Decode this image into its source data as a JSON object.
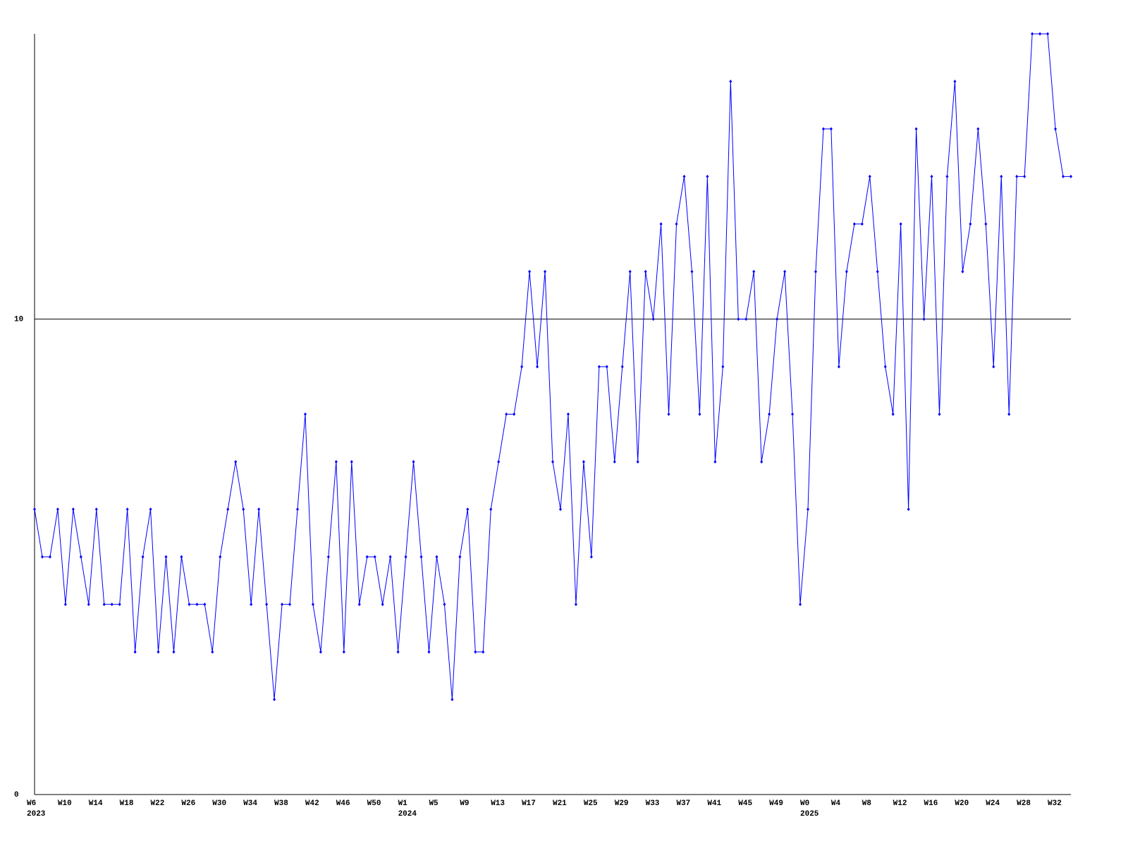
{
  "chart_data": {
    "type": "line",
    "categories": [
      "W6",
      null,
      null,
      null,
      "W10",
      null,
      null,
      null,
      "W14",
      null,
      null,
      null,
      "W18",
      null,
      null,
      null,
      "W22",
      null,
      null,
      null,
      "W26",
      null,
      null,
      null,
      "W30",
      null,
      null,
      null,
      "W34",
      null,
      null,
      null,
      "W38",
      null,
      null,
      null,
      "W42",
      null,
      null,
      null,
      "W46",
      null,
      null,
      null,
      "W50",
      null,
      null,
      null,
      "W1",
      null,
      null,
      null,
      "W5",
      null,
      null,
      null,
      "W9",
      null,
      null,
      null,
      "W13",
      null,
      null,
      null,
      "W17",
      null,
      null,
      null,
      "W21",
      null,
      null,
      null,
      "W25",
      null,
      null,
      null,
      "W29",
      null,
      null,
      null,
      "W33",
      null,
      null,
      null,
      "W37",
      null,
      null,
      null,
      "W41",
      null,
      null,
      null,
      "W45",
      null,
      null,
      null,
      "W49",
      null,
      null,
      null,
      "W0",
      null,
      null,
      null,
      "W4",
      null,
      null,
      null,
      "W8",
      null,
      null,
      null,
      "W12",
      null,
      null,
      null,
      "W16",
      null,
      null,
      null,
      "W20",
      null,
      null,
      null,
      "W24",
      null,
      null,
      null,
      "W28",
      null,
      null,
      null,
      "W32",
      null,
      null
    ],
    "years": [
      "2023",
      null,
      null,
      null,
      null,
      null,
      null,
      null,
      null,
      null,
      null,
      null,
      null,
      null,
      null,
      null,
      null,
      null,
      null,
      null,
      null,
      null,
      null,
      null,
      null,
      null,
      null,
      null,
      null,
      null,
      null,
      null,
      null,
      null,
      null,
      null,
      null,
      null,
      null,
      null,
      null,
      null,
      null,
      null,
      null,
      null,
      null,
      null,
      "2024",
      null,
      null,
      null,
      null,
      null,
      null,
      null,
      null,
      null,
      null,
      null,
      null,
      null,
      null,
      null,
      null,
      null,
      null,
      null,
      null,
      null,
      null,
      null,
      null,
      null,
      null,
      null,
      null,
      null,
      null,
      null,
      null,
      null,
      null,
      null,
      null,
      null,
      null,
      null,
      null,
      null,
      null,
      null,
      null,
      null,
      null,
      null,
      null,
      null,
      null,
      null,
      "2025",
      null,
      null,
      null,
      null,
      null,
      null,
      null,
      null,
      null,
      null,
      null,
      null,
      null,
      null,
      null,
      null,
      null,
      null,
      null,
      null,
      null,
      null,
      null,
      null,
      null,
      null,
      null,
      null,
      null,
      null,
      null,
      null,
      null,
      null
    ],
    "values": [
      6,
      5,
      5,
      6,
      4,
      6,
      5,
      4,
      6,
      4,
      4,
      4,
      6,
      3,
      5,
      6,
      3,
      5,
      3,
      5,
      4,
      4,
      4,
      3,
      5,
      6,
      7,
      6,
      4,
      6,
      4,
      2,
      4,
      4,
      6,
      8,
      4,
      3,
      5,
      7,
      3,
      7,
      4,
      5,
      5,
      4,
      5,
      3,
      5,
      7,
      5,
      3,
      5,
      4,
      2,
      5,
      6,
      3,
      3,
      6,
      7,
      8,
      8,
      9,
      11,
      9,
      11,
      7,
      6,
      8,
      4,
      7,
      5,
      9,
      9,
      7,
      9,
      11,
      7,
      11,
      10,
      12,
      8,
      12,
      13,
      11,
      8,
      13,
      7,
      9,
      15,
      10,
      10,
      11,
      7,
      8,
      10,
      11,
      8,
      4,
      6,
      11,
      14,
      14,
      9,
      11,
      12,
      12,
      13,
      11,
      9,
      8,
      12,
      6,
      14,
      10,
      13,
      8,
      13,
      15,
      11,
      12,
      14,
      12,
      9,
      13,
      8,
      13,
      13,
      16,
      16,
      16,
      14,
      13,
      13
    ],
    "color": "#0000ff",
    "ylim": [
      0,
      16
    ],
    "yticks": [
      0,
      10
    ],
    "grid": true
  }
}
